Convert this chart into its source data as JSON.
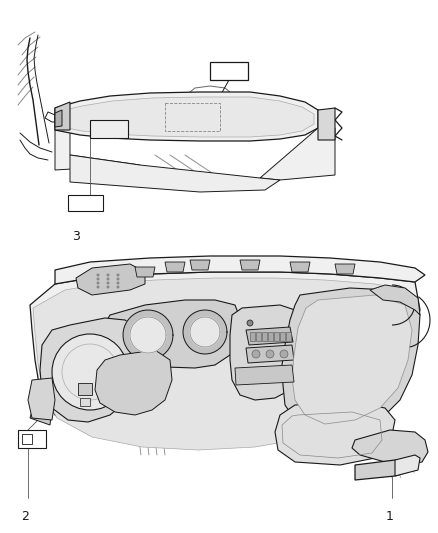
{
  "background_color": "#ffffff",
  "fig_width": 4.38,
  "fig_height": 5.33,
  "dpi": 100,
  "label_1": "1",
  "label_2": "2",
  "label_3": "3",
  "line_color": "#1a1a1a",
  "line_color_light": "#888888",
  "fill_light": "#f0f0f0",
  "fill_mid": "#d8d8d8",
  "fill_dark": "#b0b0b0"
}
